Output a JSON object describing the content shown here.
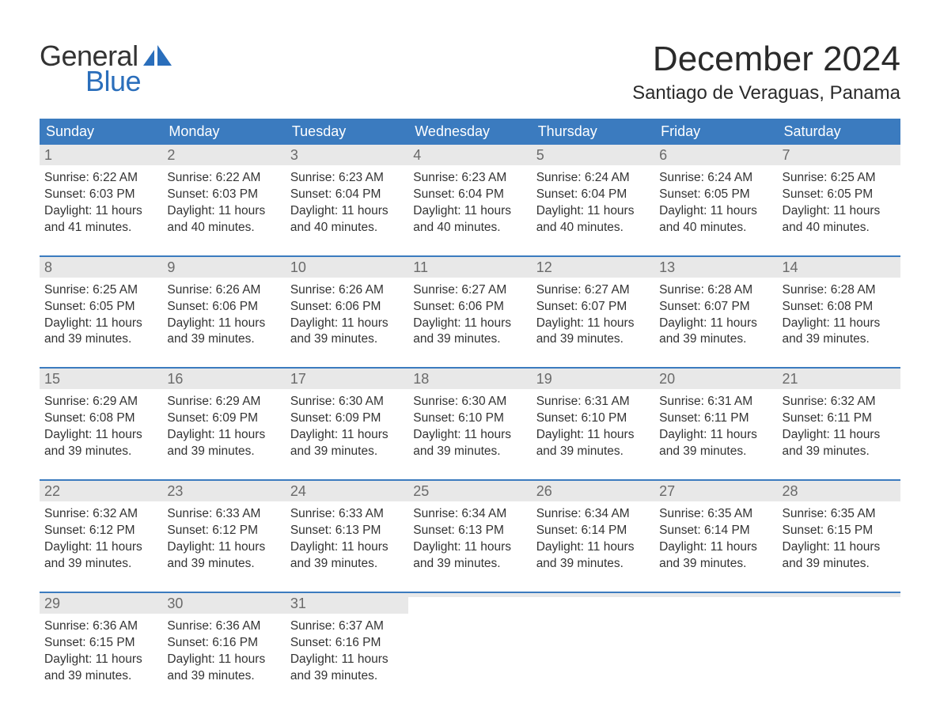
{
  "brand": {
    "general": "General",
    "blue": "Blue",
    "accent": "#2a6ebb"
  },
  "title": "December 2024",
  "location": "Santiago de Veraguas, Panama",
  "colors": {
    "header_bg": "#3b7bbf",
    "header_text": "#ffffff",
    "daynum_bg": "#e8e8e8",
    "daynum_text": "#6a6a6a",
    "body_text": "#333333",
    "week_divider": "#3b7bbf",
    "page_bg": "#ffffff"
  },
  "typography": {
    "title_fontsize": 44,
    "location_fontsize": 24,
    "header_fontsize": 18,
    "daynum_fontsize": 18,
    "body_fontsize": 15.5
  },
  "day_headers": [
    "Sunday",
    "Monday",
    "Tuesday",
    "Wednesday",
    "Thursday",
    "Friday",
    "Saturday"
  ],
  "weeks": [
    [
      {
        "n": "1",
        "sunrise": "Sunrise: 6:22 AM",
        "sunset": "Sunset: 6:03 PM",
        "d1": "Daylight: 11 hours",
        "d2": "and 41 minutes."
      },
      {
        "n": "2",
        "sunrise": "Sunrise: 6:22 AM",
        "sunset": "Sunset: 6:03 PM",
        "d1": "Daylight: 11 hours",
        "d2": "and 40 minutes."
      },
      {
        "n": "3",
        "sunrise": "Sunrise: 6:23 AM",
        "sunset": "Sunset: 6:04 PM",
        "d1": "Daylight: 11 hours",
        "d2": "and 40 minutes."
      },
      {
        "n": "4",
        "sunrise": "Sunrise: 6:23 AM",
        "sunset": "Sunset: 6:04 PM",
        "d1": "Daylight: 11 hours",
        "d2": "and 40 minutes."
      },
      {
        "n": "5",
        "sunrise": "Sunrise: 6:24 AM",
        "sunset": "Sunset: 6:04 PM",
        "d1": "Daylight: 11 hours",
        "d2": "and 40 minutes."
      },
      {
        "n": "6",
        "sunrise": "Sunrise: 6:24 AM",
        "sunset": "Sunset: 6:05 PM",
        "d1": "Daylight: 11 hours",
        "d2": "and 40 minutes."
      },
      {
        "n": "7",
        "sunrise": "Sunrise: 6:25 AM",
        "sunset": "Sunset: 6:05 PM",
        "d1": "Daylight: 11 hours",
        "d2": "and 40 minutes."
      }
    ],
    [
      {
        "n": "8",
        "sunrise": "Sunrise: 6:25 AM",
        "sunset": "Sunset: 6:05 PM",
        "d1": "Daylight: 11 hours",
        "d2": "and 39 minutes."
      },
      {
        "n": "9",
        "sunrise": "Sunrise: 6:26 AM",
        "sunset": "Sunset: 6:06 PM",
        "d1": "Daylight: 11 hours",
        "d2": "and 39 minutes."
      },
      {
        "n": "10",
        "sunrise": "Sunrise: 6:26 AM",
        "sunset": "Sunset: 6:06 PM",
        "d1": "Daylight: 11 hours",
        "d2": "and 39 minutes."
      },
      {
        "n": "11",
        "sunrise": "Sunrise: 6:27 AM",
        "sunset": "Sunset: 6:06 PM",
        "d1": "Daylight: 11 hours",
        "d2": "and 39 minutes."
      },
      {
        "n": "12",
        "sunrise": "Sunrise: 6:27 AM",
        "sunset": "Sunset: 6:07 PM",
        "d1": "Daylight: 11 hours",
        "d2": "and 39 minutes."
      },
      {
        "n": "13",
        "sunrise": "Sunrise: 6:28 AM",
        "sunset": "Sunset: 6:07 PM",
        "d1": "Daylight: 11 hours",
        "d2": "and 39 minutes."
      },
      {
        "n": "14",
        "sunrise": "Sunrise: 6:28 AM",
        "sunset": "Sunset: 6:08 PM",
        "d1": "Daylight: 11 hours",
        "d2": "and 39 minutes."
      }
    ],
    [
      {
        "n": "15",
        "sunrise": "Sunrise: 6:29 AM",
        "sunset": "Sunset: 6:08 PM",
        "d1": "Daylight: 11 hours",
        "d2": "and 39 minutes."
      },
      {
        "n": "16",
        "sunrise": "Sunrise: 6:29 AM",
        "sunset": "Sunset: 6:09 PM",
        "d1": "Daylight: 11 hours",
        "d2": "and 39 minutes."
      },
      {
        "n": "17",
        "sunrise": "Sunrise: 6:30 AM",
        "sunset": "Sunset: 6:09 PM",
        "d1": "Daylight: 11 hours",
        "d2": "and 39 minutes."
      },
      {
        "n": "18",
        "sunrise": "Sunrise: 6:30 AM",
        "sunset": "Sunset: 6:10 PM",
        "d1": "Daylight: 11 hours",
        "d2": "and 39 minutes."
      },
      {
        "n": "19",
        "sunrise": "Sunrise: 6:31 AM",
        "sunset": "Sunset: 6:10 PM",
        "d1": "Daylight: 11 hours",
        "d2": "and 39 minutes."
      },
      {
        "n": "20",
        "sunrise": "Sunrise: 6:31 AM",
        "sunset": "Sunset: 6:11 PM",
        "d1": "Daylight: 11 hours",
        "d2": "and 39 minutes."
      },
      {
        "n": "21",
        "sunrise": "Sunrise: 6:32 AM",
        "sunset": "Sunset: 6:11 PM",
        "d1": "Daylight: 11 hours",
        "d2": "and 39 minutes."
      }
    ],
    [
      {
        "n": "22",
        "sunrise": "Sunrise: 6:32 AM",
        "sunset": "Sunset: 6:12 PM",
        "d1": "Daylight: 11 hours",
        "d2": "and 39 minutes."
      },
      {
        "n": "23",
        "sunrise": "Sunrise: 6:33 AM",
        "sunset": "Sunset: 6:12 PM",
        "d1": "Daylight: 11 hours",
        "d2": "and 39 minutes."
      },
      {
        "n": "24",
        "sunrise": "Sunrise: 6:33 AM",
        "sunset": "Sunset: 6:13 PM",
        "d1": "Daylight: 11 hours",
        "d2": "and 39 minutes."
      },
      {
        "n": "25",
        "sunrise": "Sunrise: 6:34 AM",
        "sunset": "Sunset: 6:13 PM",
        "d1": "Daylight: 11 hours",
        "d2": "and 39 minutes."
      },
      {
        "n": "26",
        "sunrise": "Sunrise: 6:34 AM",
        "sunset": "Sunset: 6:14 PM",
        "d1": "Daylight: 11 hours",
        "d2": "and 39 minutes."
      },
      {
        "n": "27",
        "sunrise": "Sunrise: 6:35 AM",
        "sunset": "Sunset: 6:14 PM",
        "d1": "Daylight: 11 hours",
        "d2": "and 39 minutes."
      },
      {
        "n": "28",
        "sunrise": "Sunrise: 6:35 AM",
        "sunset": "Sunset: 6:15 PM",
        "d1": "Daylight: 11 hours",
        "d2": "and 39 minutes."
      }
    ],
    [
      {
        "n": "29",
        "sunrise": "Sunrise: 6:36 AM",
        "sunset": "Sunset: 6:15 PM",
        "d1": "Daylight: 11 hours",
        "d2": "and 39 minutes."
      },
      {
        "n": "30",
        "sunrise": "Sunrise: 6:36 AM",
        "sunset": "Sunset: 6:16 PM",
        "d1": "Daylight: 11 hours",
        "d2": "and 39 minutes."
      },
      {
        "n": "31",
        "sunrise": "Sunrise: 6:37 AM",
        "sunset": "Sunset: 6:16 PM",
        "d1": "Daylight: 11 hours",
        "d2": "and 39 minutes."
      },
      {
        "empty": true
      },
      {
        "empty": true
      },
      {
        "empty": true
      },
      {
        "empty": true
      }
    ]
  ]
}
